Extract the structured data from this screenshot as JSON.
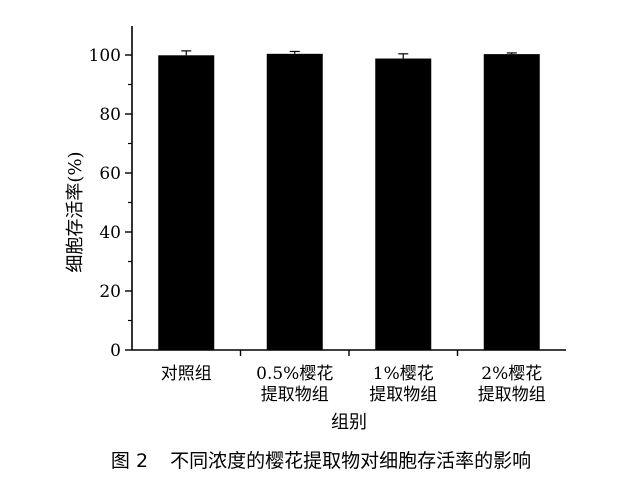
{
  "chart_data": {
    "type": "bar",
    "categories": [
      [
        "对照组"
      ],
      [
        "0.5%樱花",
        "提取物组"
      ],
      [
        "1%樱花",
        "提取物组"
      ],
      [
        "2%樱花",
        "提取物组"
      ]
    ],
    "values": [
      99.9,
      100.4,
      98.8,
      100.3
    ],
    "error": [
      1.5,
      0.8,
      1.6,
      0.4
    ],
    "xlabel": "组别",
    "ylabel": "细胞存活率(%)",
    "ylim": [
      0,
      110
    ],
    "yticks": [
      0,
      20,
      40,
      60,
      80,
      100
    ],
    "grid": false,
    "colors": {
      "bar": "#000000",
      "axis": "#000000"
    }
  },
  "caption": {
    "figure_number": "图 2",
    "text": "不同浓度的樱花提取物对细胞存活率的影响"
  }
}
